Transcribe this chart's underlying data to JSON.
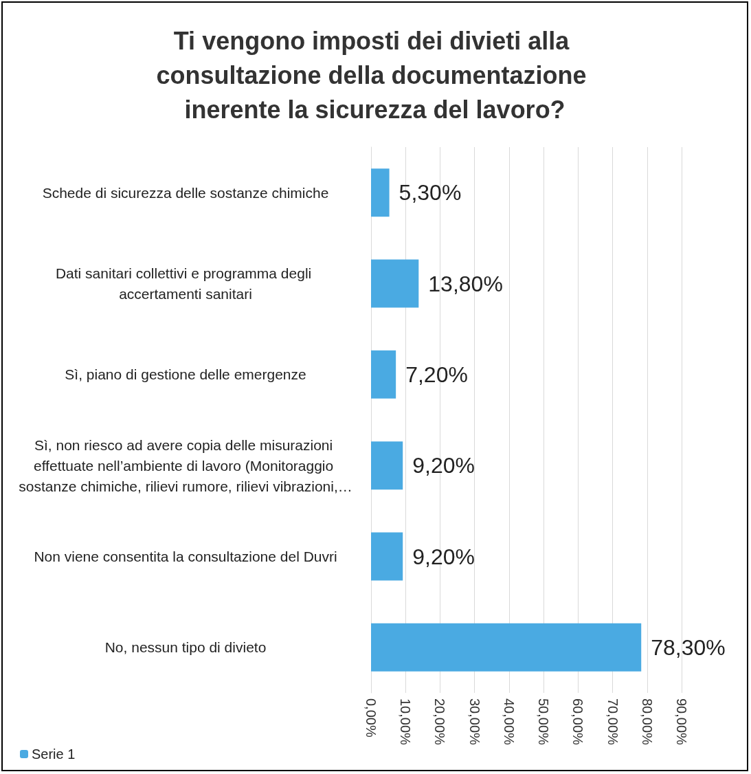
{
  "chart_data": {
    "type": "bar",
    "orientation": "horizontal",
    "title": "Ti vengono imposti dei divieti alla consultazione della documentazione inerente la sicurezza del lavoro?",
    "categories": [
      "Schede di sicurezza delle sostanze chimiche",
      "Dati sanitari collettivi e programma degli accertamenti sanitari",
      "Sì, piano di gestione delle emergenze",
      "Sì, non riesco ad avere copia delle misurazioni effettuate nell’ambiente di lavoro (Monitoraggio sostanze chimiche, rilievi rumore, rilievi vibrazioni,…",
      "Non viene consentita la consultazione del Duvri",
      "No, nessun tipo di divieto"
    ],
    "series": [
      {
        "name": "Serie 1",
        "color": "#4aaae2",
        "values": [
          5.3,
          13.8,
          7.2,
          9.2,
          9.2,
          78.3
        ],
        "value_labels": [
          "5,30%",
          "13,80%",
          "7,20%",
          "9,20%",
          "9,20%",
          "78,30%"
        ]
      }
    ],
    "xlim": [
      0,
      90
    ],
    "xticks": [
      {
        "value": 0,
        "label": "0,00%"
      },
      {
        "value": 10,
        "label": "10,00%"
      },
      {
        "value": 20,
        "label": "20,00%"
      },
      {
        "value": 30,
        "label": "30,00%"
      },
      {
        "value": 40,
        "label": "40,00%"
      },
      {
        "value": 50,
        "label": "50,00%"
      },
      {
        "value": 60,
        "label": "60,00%"
      },
      {
        "value": 70,
        "label": "70,00%"
      },
      {
        "value": 80,
        "label": "80,00%"
      },
      {
        "value": 90,
        "label": "90,00%"
      }
    ],
    "grid": "x",
    "legend": "bottom left"
  }
}
